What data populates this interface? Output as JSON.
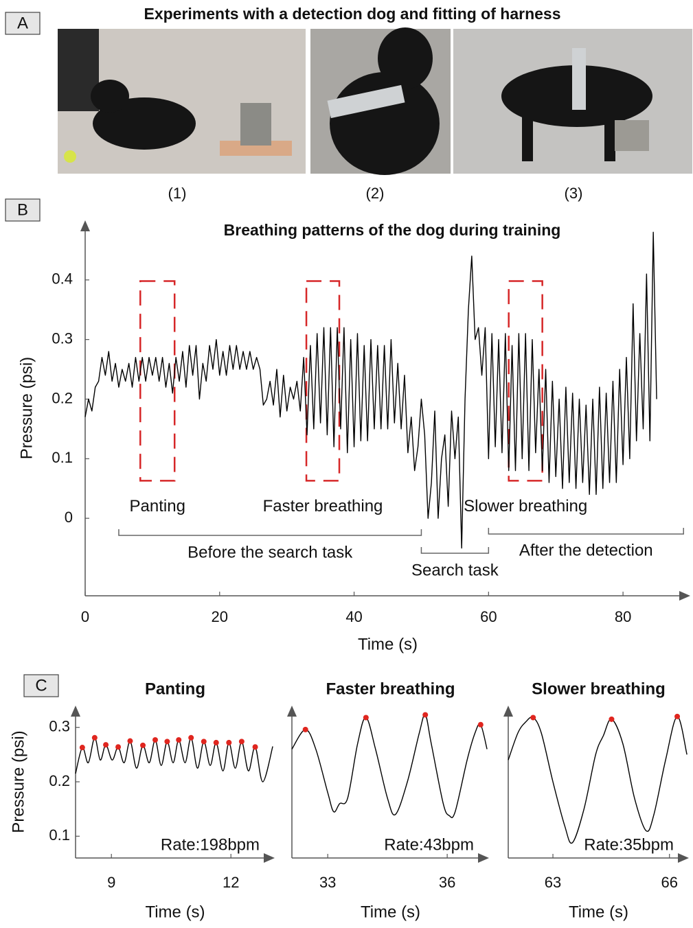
{
  "panel_labels": [
    "A",
    "B",
    "C"
  ],
  "photos": {
    "title": "Experiments with a detection dog and fitting of harness",
    "captions": [
      "(1)",
      "(2)",
      "(3)"
    ]
  },
  "chart_data": [
    {
      "type": "line",
      "title": "Breathing patterns of the dog during training",
      "x_label": "Time (s)",
      "y_label": "Pressure (psi)",
      "xlim": [
        0,
        90
      ],
      "ylim": [
        -0.13,
        0.5
      ],
      "xticks": [
        0,
        20,
        40,
        60,
        80
      ],
      "yticks": [
        0,
        0.1,
        0.2,
        0.3,
        0.4
      ],
      "x": [
        0,
        0.5,
        1,
        1.5,
        2,
        2.5,
        3,
        3.5,
        4,
        4.5,
        5,
        5.5,
        6,
        6.5,
        7,
        7.5,
        8,
        8.5,
        9,
        9.5,
        10,
        10.5,
        11,
        11.5,
        12,
        12.5,
        13,
        13.5,
        14,
        14.5,
        15,
        15.5,
        16,
        16.5,
        17,
        17.5,
        18,
        18.5,
        19,
        19.5,
        20,
        20.5,
        21,
        21.5,
        22,
        22.5,
        23,
        23.5,
        24,
        24.5,
        25,
        25.5,
        26,
        26.5,
        27,
        27.5,
        28,
        28.5,
        29,
        29.5,
        30,
        30.5,
        31,
        31.5,
        32,
        32.5,
        33,
        33.5,
        34,
        34.5,
        35,
        35.5,
        36,
        36.5,
        37,
        37.5,
        38,
        38.5,
        39,
        39.5,
        40,
        40.5,
        41,
        41.5,
        42,
        42.5,
        43,
        43.5,
        44,
        44.5,
        45,
        45.5,
        46,
        46.5,
        47,
        47.5,
        48,
        48.5,
        49,
        49.5,
        50,
        50.5,
        51,
        51.5,
        52,
        52.5,
        53,
        53.5,
        54,
        54.5,
        55,
        55.5,
        56,
        56.5,
        57,
        57.5,
        58,
        58.5,
        59,
        59.5,
        60,
        60.5,
        61,
        61.5,
        62,
        62.5,
        63,
        63.5,
        64,
        64.5,
        65,
        65.5,
        66,
        66.5,
        67,
        67.5,
        68,
        68.5,
        69,
        69.5,
        70,
        70.5,
        71,
        71.5,
        72,
        72.5,
        73,
        73.5,
        74,
        74.5,
        75,
        75.5,
        76,
        76.5,
        77,
        77.5,
        78,
        78.5,
        79,
        79.5,
        80,
        80.5,
        81,
        81.5,
        82,
        82.5,
        83,
        83.5,
        84,
        84.5,
        85
      ],
      "series": [
        {
          "color": "#000000",
          "values": [
            0.17,
            0.2,
            0.18,
            0.22,
            0.23,
            0.27,
            0.24,
            0.28,
            0.23,
            0.26,
            0.22,
            0.25,
            0.23,
            0.26,
            0.22,
            0.27,
            0.23,
            0.27,
            0.23,
            0.27,
            0.24,
            0.27,
            0.23,
            0.27,
            0.22,
            0.26,
            0.21,
            0.27,
            0.23,
            0.28,
            0.22,
            0.29,
            0.24,
            0.29,
            0.2,
            0.26,
            0.23,
            0.29,
            0.25,
            0.3,
            0.24,
            0.28,
            0.24,
            0.29,
            0.25,
            0.29,
            0.25,
            0.28,
            0.25,
            0.28,
            0.25,
            0.27,
            0.25,
            0.19,
            0.2,
            0.23,
            0.19,
            0.25,
            0.17,
            0.24,
            0.18,
            0.22,
            0.2,
            0.23,
            0.18,
            0.27,
            0.14,
            0.29,
            0.15,
            0.31,
            0.16,
            0.32,
            0.14,
            0.32,
            0.12,
            0.32,
            0.15,
            0.32,
            0.11,
            0.3,
            0.12,
            0.31,
            0.13,
            0.29,
            0.13,
            0.3,
            0.15,
            0.29,
            0.15,
            0.29,
            0.15,
            0.3,
            0.16,
            0.26,
            0.15,
            0.24,
            0.11,
            0.17,
            0.08,
            0.12,
            0.2,
            0.14,
            0.0,
            0.06,
            0.18,
            0.0,
            0.1,
            0.14,
            0.02,
            0.18,
            0.1,
            0.17,
            -0.05,
            0.2,
            0.35,
            0.44,
            0.3,
            0.32,
            0.24,
            0.32,
            0.1,
            0.31,
            0.12,
            0.3,
            0.11,
            0.31,
            0.08,
            0.29,
            0.08,
            0.31,
            0.1,
            0.31,
            0.08,
            0.3,
            0.11,
            0.25,
            0.08,
            0.25,
            0.06,
            0.23,
            0.07,
            0.2,
            0.05,
            0.22,
            0.06,
            0.21,
            0.05,
            0.2,
            0.06,
            0.19,
            0.04,
            0.2,
            0.04,
            0.22,
            0.05,
            0.21,
            0.06,
            0.23,
            0.06,
            0.25,
            0.09,
            0.27,
            0.1,
            0.36,
            0.13,
            0.31,
            0.15,
            0.41,
            0.13,
            0.48,
            0.2
          ]
        }
      ],
      "highlights": [
        {
          "label": "Panting",
          "xlim": [
            8.2,
            13.3
          ],
          "ylim": [
            0.063,
            0.398
          ],
          "color": "#d62728"
        },
        {
          "label": "Faster breathing",
          "xlim": [
            32.9,
            37.8
          ],
          "ylim": [
            0.063,
            0.398
          ],
          "color": "#d62728"
        },
        {
          "label": "Slower breathing",
          "xlim": [
            63,
            68
          ],
          "ylim": [
            0.063,
            0.398
          ],
          "color": "#d62728"
        }
      ],
      "spans": [
        {
          "label": "Before the search task",
          "range": [
            5,
            50
          ]
        },
        {
          "label": "Search task",
          "range": [
            50,
            60
          ]
        },
        {
          "label": "After the detection",
          "range": [
            60,
            89
          ]
        }
      ]
    },
    {
      "type": "line",
      "title": "Panting",
      "x_label": "Time (s)",
      "y_label": "Pressure (psi)",
      "annotation": "Rate:198bpm",
      "xlim": [
        8.1,
        13.1
      ],
      "ylim": [
        0.06,
        0.34
      ],
      "xticks": [
        9,
        12
      ],
      "yticks": [
        0.1,
        0.2,
        0.3
      ],
      "series": [
        {
          "color": "#000000",
          "x": [
            8.1,
            8.27,
            8.42,
            8.58,
            8.72,
            8.86,
            9.02,
            9.17,
            9.32,
            9.47,
            9.63,
            9.79,
            9.95,
            10.1,
            10.25,
            10.4,
            10.55,
            10.69,
            10.85,
            11.0,
            11.16,
            11.32,
            11.48,
            11.63,
            11.8,
            11.95,
            12.11,
            12.27,
            12.44,
            12.61,
            12.8,
            13.05
          ],
          "values": [
            0.215,
            0.263,
            0.235,
            0.281,
            0.24,
            0.268,
            0.24,
            0.264,
            0.235,
            0.275,
            0.225,
            0.267,
            0.235,
            0.277,
            0.23,
            0.274,
            0.235,
            0.277,
            0.235,
            0.281,
            0.225,
            0.274,
            0.23,
            0.272,
            0.22,
            0.272,
            0.225,
            0.274,
            0.22,
            0.264,
            0.2,
            0.265
          ]
        },
        {
          "color": "#e0261f",
          "marker": "dot",
          "x": [
            8.27,
            8.58,
            8.86,
            9.17,
            9.47,
            9.79,
            10.1,
            10.4,
            10.69,
            11.0,
            11.32,
            11.63,
            11.95,
            12.27,
            12.61
          ],
          "values": [
            0.263,
            0.281,
            0.268,
            0.264,
            0.275,
            0.267,
            0.277,
            0.274,
            0.277,
            0.281,
            0.274,
            0.272,
            0.272,
            0.274,
            0.264
          ]
        }
      ]
    },
    {
      "type": "line",
      "title": "Faster breathing",
      "x_label": "Time (s)",
      "annotation": "Rate:43bpm",
      "xlim": [
        32.1,
        37.05
      ],
      "ylim": [
        0.06,
        0.34
      ],
      "xticks": [
        33,
        36
      ],
      "series": [
        {
          "color": "#000000",
          "x": [
            32.1,
            32.44,
            32.7,
            33.0,
            33.15,
            33.3,
            33.5,
            33.75,
            33.96,
            34.2,
            34.5,
            34.7,
            35.0,
            35.3,
            35.45,
            35.6,
            35.9,
            36.05,
            36.2,
            36.5,
            36.7,
            36.84,
            37.0
          ],
          "values": [
            0.26,
            0.296,
            0.26,
            0.18,
            0.145,
            0.16,
            0.17,
            0.27,
            0.318,
            0.26,
            0.17,
            0.14,
            0.2,
            0.29,
            0.323,
            0.27,
            0.16,
            0.138,
            0.145,
            0.24,
            0.29,
            0.305,
            0.26
          ]
        },
        {
          "color": "#e0261f",
          "marker": "dot",
          "x": [
            32.44,
            33.96,
            35.45,
            36.84
          ],
          "values": [
            0.296,
            0.318,
            0.323,
            0.305
          ]
        }
      ]
    },
    {
      "type": "line",
      "title": "Slower breathing",
      "x_label": "Time (s)",
      "annotation": "Rate:35bpm",
      "xlim": [
        61.85,
        66.5
      ],
      "ylim": [
        0.06,
        0.34
      ],
      "xticks": [
        63,
        66
      ],
      "series": [
        {
          "color": "#000000",
          "x": [
            61.85,
            62.1,
            62.3,
            62.49,
            62.7,
            63.0,
            63.3,
            63.5,
            63.8,
            64.1,
            64.3,
            64.51,
            64.8,
            65.1,
            65.4,
            65.6,
            65.9,
            66.2,
            66.45
          ],
          "values": [
            0.24,
            0.29,
            0.31,
            0.318,
            0.29,
            0.2,
            0.12,
            0.088,
            0.15,
            0.25,
            0.285,
            0.315,
            0.27,
            0.17,
            0.11,
            0.14,
            0.24,
            0.32,
            0.25
          ]
        },
        {
          "color": "#e0261f",
          "marker": "dot",
          "x": [
            62.49,
            64.51,
            66.2
          ],
          "values": [
            0.318,
            0.315,
            0.32
          ]
        }
      ]
    }
  ]
}
